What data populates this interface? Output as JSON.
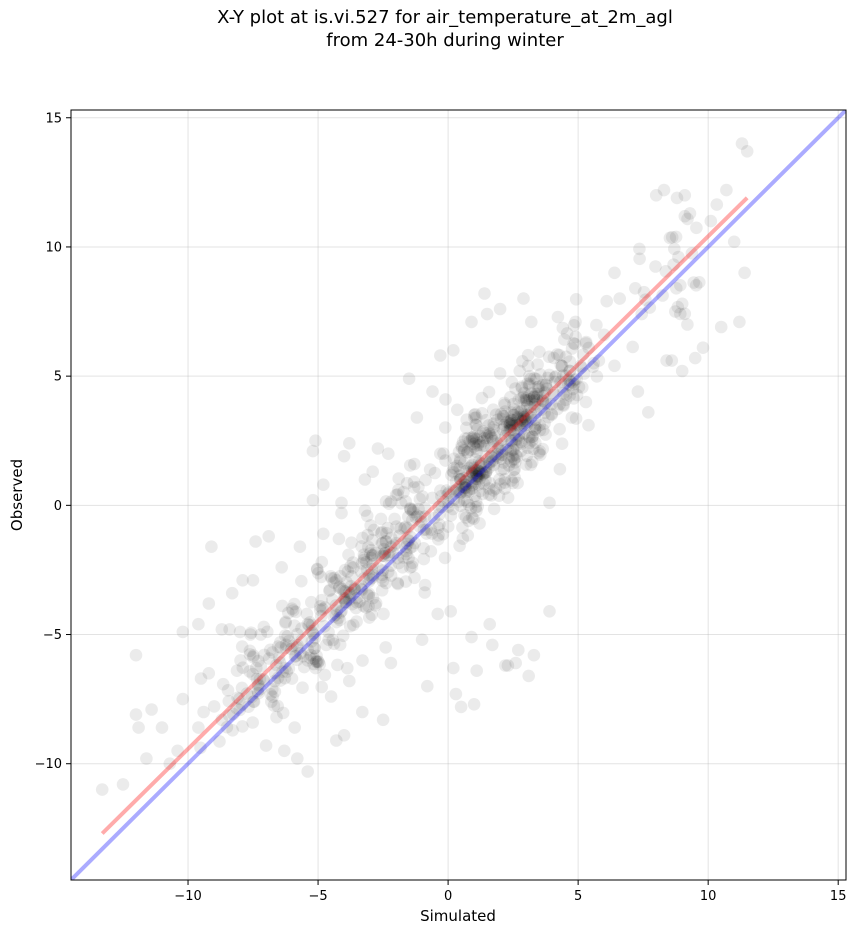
{
  "chart_data": {
    "type": "scatter",
    "title_line1": "X-Y plot at is.vi.527 for air_temperature_at_2m_agl",
    "title_line2": "from 24-30h during winter",
    "xlabel": "Simulated",
    "ylabel": "Observed",
    "xlim": [
      -14.5,
      15.3
    ],
    "ylim": [
      -14.5,
      15.3
    ],
    "x_ticks": [
      -10,
      -5,
      0,
      5,
      10,
      15
    ],
    "y_ticks": [
      -10,
      -5,
      0,
      5,
      10,
      15
    ],
    "x_tick_labels": [
      "−10",
      "−5",
      "0",
      "5",
      "10",
      "15"
    ],
    "y_tick_labels": [
      "−10",
      "−5",
      "0",
      "5",
      "10",
      "15"
    ],
    "grid": true,
    "identity_line": {
      "x": [
        -14.5,
        15.3
      ],
      "y": [
        -14.5,
        15.3
      ],
      "color": "#0000ff"
    },
    "regression_line": {
      "x": [
        -13.3,
        11.5
      ],
      "y": [
        -12.7,
        11.9
      ],
      "color": "#ff0000"
    },
    "point_color": "#000000",
    "point_count": 1000,
    "points_x": [
      -13.3,
      -12.5,
      -11.6,
      -10.7,
      -11.0,
      -9.6,
      -12.0,
      -11.4,
      -10.2,
      -9.2,
      -8.3,
      -9.6,
      -10.2,
      -8.4,
      -7.5,
      -7.4,
      -6.4,
      -8.0,
      -8.7,
      -7.6,
      -6.5,
      -7.2,
      -4.8,
      -5.2,
      -2.9,
      -4.0,
      -4.1,
      -3.2,
      -2.0,
      -1.3,
      -0.3,
      0.7,
      -0.1,
      -1.2,
      -5.7,
      -4.2,
      -9.1,
      -6.9,
      -7.9,
      -6.0,
      -5.4,
      -2.4,
      0.2,
      0.9,
      1.7,
      2.2,
      0.1,
      1.1,
      1.6,
      2.7,
      3.1,
      3.9,
      4.3,
      5.4,
      4.7,
      5.1,
      5.6,
      6.0,
      4.9,
      6.1,
      6.4,
      7.2,
      6.6,
      8.0,
      8.3,
      8.8,
      9.1,
      9.3,
      10.1,
      10.7,
      11.3,
      11.5,
      11.0,
      11.4,
      11.2,
      10.5,
      8.4,
      9.8,
      9.5,
      9.0,
      8.6,
      9.0,
      9.2,
      7.7,
      7.3,
      5.3,
      5.8,
      4.8,
      6.4,
      3.2,
      2.9,
      2.0,
      1.5,
      0.9,
      1.4,
      -0.3,
      0.2,
      -0.6,
      -1.5,
      -2.7,
      -3.8,
      -3.2,
      -2.3,
      -5.1,
      -5.2,
      -4.1,
      -4.8,
      -1.0,
      -0.4,
      -2.2,
      -2.5,
      -0.8,
      0.3,
      1.0,
      0.5,
      2.3,
      2.6,
      3.3,
      3.9,
      -4.3,
      -4.0,
      -5.4,
      -5.9,
      -6.6,
      -7.0,
      -6.3,
      -5.8,
      -6.8,
      -3.8,
      -4.5,
      -3.3,
      -9.4,
      -8.7,
      -10.4,
      -11.9,
      -12.0,
      -9.5,
      -9.2
    ],
    "points_y": [
      -11.0,
      -10.8,
      -9.8,
      -10.0,
      -8.6,
      -8.6,
      -5.8,
      -7.9,
      -7.5,
      -3.8,
      -3.4,
      -4.6,
      -4.9,
      -4.8,
      -2.9,
      -1.4,
      -2.4,
      -4.9,
      -4.8,
      -5.0,
      -5.9,
      -5.0,
      0.8,
      2.1,
      1.3,
      1.9,
      0.1,
      -0.2,
      0.4,
      1.6,
      2.0,
      3.0,
      4.1,
      3.4,
      -1.6,
      -1.3,
      -1.6,
      -1.2,
      -2.9,
      -4.0,
      -6.0,
      -5.5,
      -6.3,
      -5.1,
      -5.4,
      -6.2,
      -4.1,
      -6.4,
      -4.6,
      -5.6,
      -6.6,
      0.1,
      1.4,
      3.1,
      4.8,
      5.4,
      5.5,
      6.6,
      7.1,
      7.9,
      9.0,
      8.4,
      8.0,
      12.0,
      12.2,
      11.9,
      12.0,
      11.3,
      11.0,
      12.2,
      14.0,
      13.7,
      10.2,
      9.0,
      7.1,
      6.9,
      5.6,
      6.1,
      5.7,
      5.2,
      5.6,
      7.8,
      7.0,
      3.6,
      4.4,
      4.0,
      5.6,
      4.5,
      5.4,
      7.1,
      8.0,
      7.6,
      7.4,
      7.1,
      8.2,
      5.8,
      6.0,
      4.4,
      4.9,
      2.2,
      2.4,
      1.0,
      2.0,
      2.5,
      0.2,
      -0.3,
      -1.1,
      -5.2,
      -4.2,
      -6.1,
      -8.3,
      -7.0,
      -7.3,
      -7.7,
      -7.8,
      -6.2,
      -6.1,
      -5.8,
      -4.1,
      -9.1,
      -8.9,
      -10.3,
      -8.6,
      -8.2,
      -9.3,
      -9.5,
      -9.8,
      -7.6,
      -6.8,
      -7.4,
      -8.0,
      -8.0,
      -8.3,
      -9.5,
      -8.6,
      -8.1,
      -6.7,
      -6.5
    ]
  }
}
